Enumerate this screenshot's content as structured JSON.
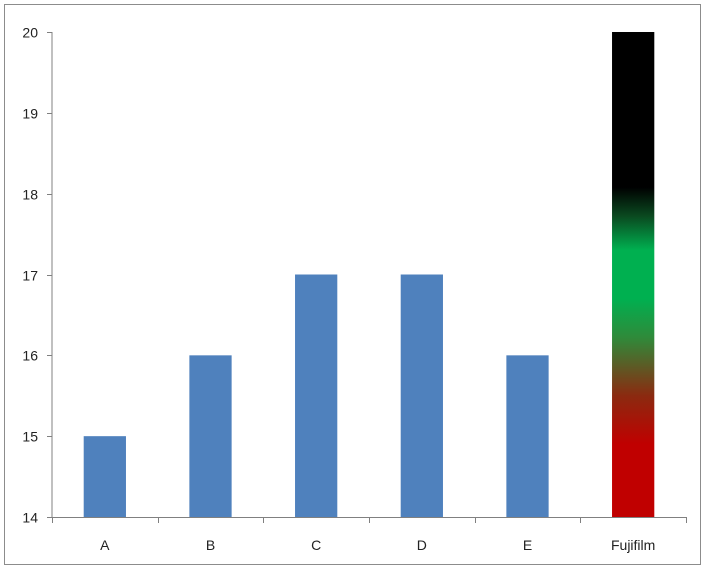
{
  "chart_data": {
    "type": "bar",
    "categories": [
      "A",
      "B",
      "C",
      "D",
      "E",
      "Fujifilm"
    ],
    "values": [
      15,
      16,
      17,
      17,
      16,
      20
    ],
    "ylim": [
      14,
      20
    ],
    "y_ticks": [
      "14",
      "15",
      "16",
      "17",
      "18",
      "19",
      "20"
    ],
    "grid": false,
    "legend": "none",
    "colors": {
      "bar": "#4f81bd",
      "axis": "#808080",
      "border": "#808080",
      "highlight_gradient": [
        "#c00000",
        "#c00000",
        "#00b050",
        "#000000",
        "#000000"
      ]
    },
    "highlight_category": "Fujifilm"
  }
}
